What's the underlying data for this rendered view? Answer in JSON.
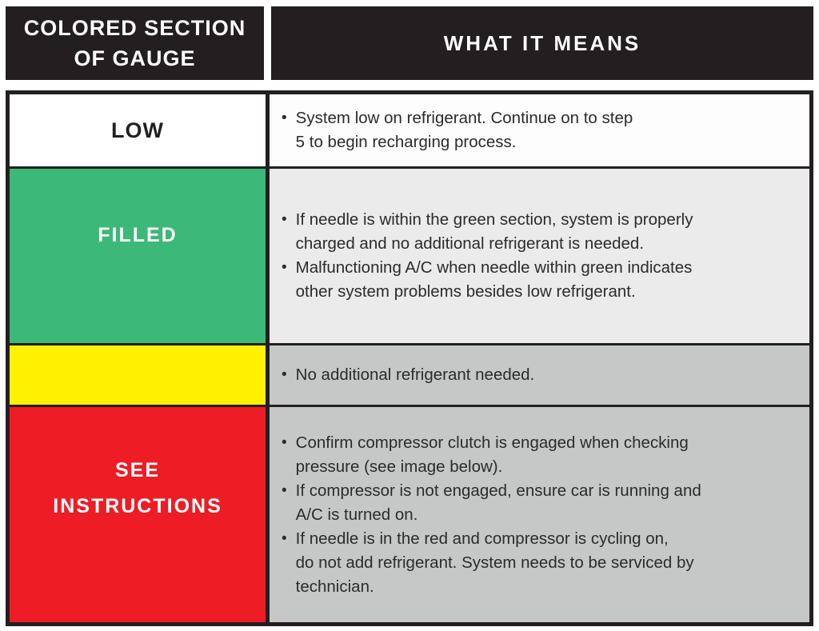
{
  "document": {
    "type": "instruction-table",
    "header": {
      "gauge_column": "COLORED SECTION\nOF GAUGE",
      "meaning_column": "WHAT IT MEANS"
    }
  },
  "bullet_glyph": "•",
  "colors": {
    "header_black": "#231f20",
    "green_filled": "#3cb878",
    "yellow": "#fff100",
    "red": "#ee1c25",
    "meaning_white": "#fdfdfd",
    "meaning_light_gray": "#ebebeb",
    "meaning_gray": "#c6c8c7",
    "body_text": "#2b2b2b"
  },
  "table": {
    "rows": [
      {
        "label": "LOW",
        "swatch_color": "#ffffff",
        "meaning_bg": "#fdfdfd",
        "bullets": [
          "System low on refrigerant. Continue on to step\n5 to begin recharging process."
        ]
      },
      {
        "label": "FILLED",
        "swatch_color": "#3cb878",
        "meaning_bg": "#ebebeb",
        "bullets": [
          "If needle is within the green section, system is properly\ncharged and no additional refrigerant is needed.",
          "Malfunctioning A/C when needle within green indicates\nother system problems besides low refrigerant."
        ]
      },
      {
        "label": "",
        "swatch_color": "#fff100",
        "meaning_bg": "#c6c8c7",
        "bullets": [
          "No additional refrigerant needed."
        ]
      },
      {
        "label": "SEE\nINSTRUCTIONS",
        "swatch_color": "#ee1c25",
        "meaning_bg": "#c6c8c7",
        "bullets": [
          "Confirm compressor clutch is engaged when checking\npressure (see image below).",
          "If compressor is not engaged, ensure car is running and\nA/C is turned on.",
          "If needle is in the red and compressor is cycling on,\ndo not add refrigerant. System needs to be serviced by\ntechnician."
        ]
      }
    ]
  }
}
